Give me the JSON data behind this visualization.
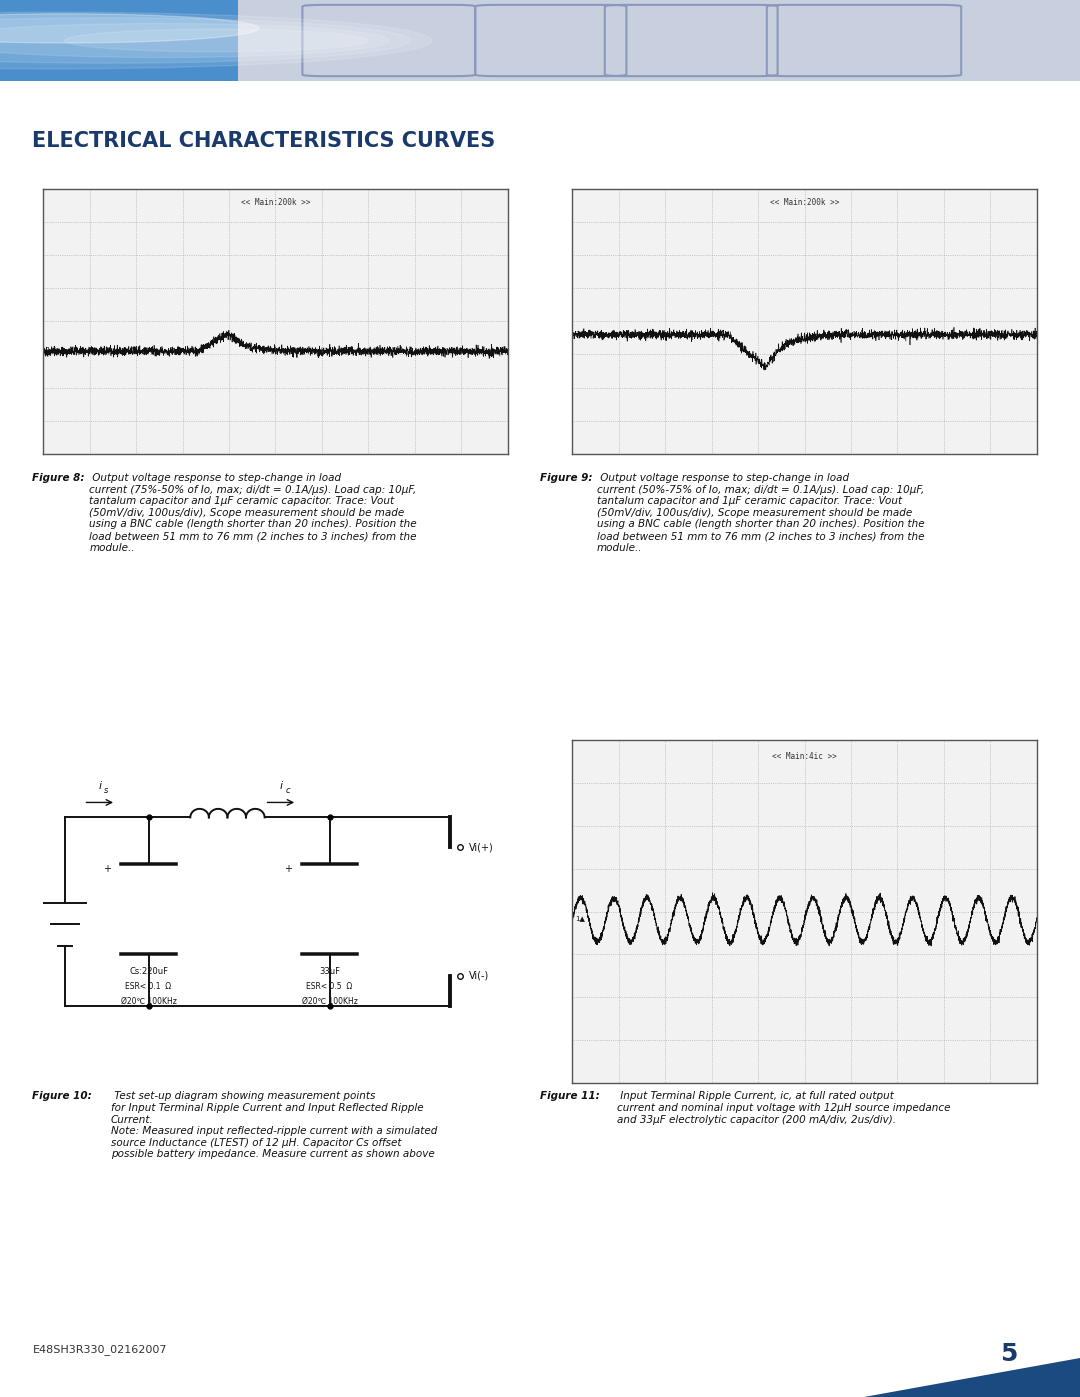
{
  "title": "ELECTRICAL CHARACTERISTICS CURVES",
  "title_color": "#1a3a6b",
  "background_color": "#ffffff",
  "header_bg": "#b8c4d8",
  "header_img_color": "#4a90c4",
  "fig8_label": "<< Main:200k >>",
  "fig9_label": "<< Main:200k >>",
  "fig11_label": "<< Main:4ic >>",
  "fig8_caption_bold": "Figure 8:",
  "fig8_caption": " Output voltage response to step-change in load\ncurrent (75%-50% of Io, max; di/dt = 0.1A/μs). Load cap: 10μF,\ntantalum capacitor and 1μF ceramic capacitor. Trace: Vout\n(50mV/div, 100us/div), Scope measurement should be made\nusing a BNC cable (length shorter than 20 inches). Position the\nload between 51 mm to 76 mm (2 inches to 3 inches) from the\nmodule..",
  "fig9_caption_bold": "Figure 9:",
  "fig9_caption": " Output voltage response to step-change in load\ncurrent (50%-75% of Io, max; di/dt = 0.1A/μs). Load cap: 10μF,\ntantalum capacitor and 1μF ceramic capacitor. Trace: Vout\n(50mV/div, 100us/div), Scope measurement should be made\nusing a BNC cable (length shorter than 20 inches). Position the\nload between 51 mm to 76 mm (2 inches to 3 inches) from the\nmodule..",
  "fig10_caption_bold": "Figure 10:",
  "fig10_caption": " Test set-up diagram showing measurement points\nfor Input Terminal Ripple Current and Input Reflected Ripple\nCurrent.\nNote: Measured input reflected-ripple current with a simulated\nsource Inductance (LTEST) of 12 μH. Capacitor Cs offset\npossible battery impedance. Measure current as shown above",
  "fig11_caption_bold": "Figure 11:",
  "fig11_caption": " Input Terminal Ripple Current, ic, at full rated output\ncurrent and nominal input voltage with 12μH source impedance\nand 33μF electrolytic capacitor (200 mA/div, 2us/div).",
  "footer_text": "E48SH3R330_02162007",
  "page_num": "5",
  "scope_border_color": "#555555",
  "scope_bg_color": "#f2f2f2",
  "scope_grid_color": "#999999"
}
